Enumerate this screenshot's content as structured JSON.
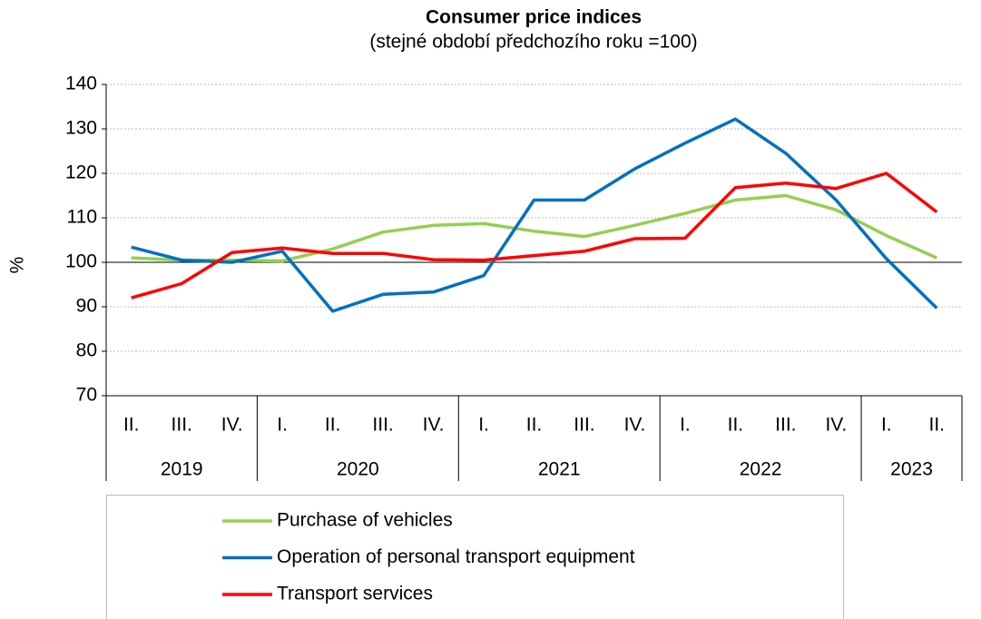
{
  "chart_data": {
    "type": "line",
    "title": "Consumer price indices",
    "subtitle": "(stejné období předchozího roku =100)",
    "y_label": "%",
    "categories": [
      "II.",
      "III.",
      "IV.",
      "I.",
      "II.",
      "III.",
      "IV.",
      "I.",
      "II.",
      "III.",
      "IV.",
      "I.",
      "II.",
      "III.",
      "IV.",
      "I.",
      "II."
    ],
    "groups": [
      {
        "label": "2019",
        "span": 3
      },
      {
        "label": "2020",
        "span": 4
      },
      {
        "label": "2021",
        "span": 4
      },
      {
        "label": "2022",
        "span": 4
      },
      {
        "label": "2023",
        "span": 2
      }
    ],
    "series": [
      {
        "name": "Purchase of vehicles",
        "color": "#92d050",
        "values": [
          101,
          100.5,
          100.5,
          100.3,
          103,
          106.8,
          108.3,
          108.7,
          107,
          105.8,
          108.3,
          111,
          114,
          115,
          111.8,
          106,
          101
        ]
      },
      {
        "name": "Operation of personal transport equipment",
        "color": "#0070c0",
        "values": [
          103.4,
          100.5,
          100,
          102.5,
          89,
          92.8,
          93.3,
          97,
          114,
          114,
          121,
          126.8,
          132.2,
          124.5,
          114,
          100.8,
          89.7
        ]
      },
      {
        "name": "Transport services",
        "color": "#ff0000",
        "values": [
          92,
          95.2,
          102.2,
          103.2,
          102,
          102,
          100.6,
          100.5,
          101.5,
          102.5,
          105.3,
          105.4,
          116.8,
          117.8,
          116.6,
          120,
          111.3
        ]
      }
    ],
    "ylim": [
      70,
      140
    ],
    "yticks": [
      70,
      80,
      90,
      100,
      110,
      120,
      130,
      140
    ],
    "grid": true,
    "hline": 100
  }
}
